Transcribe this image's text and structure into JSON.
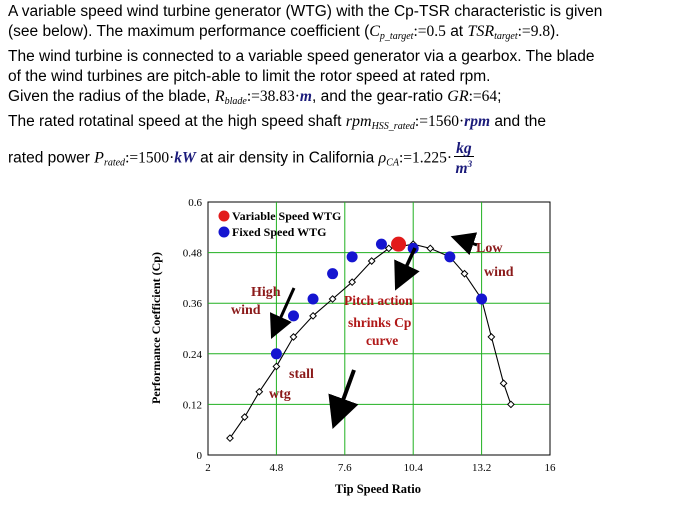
{
  "problem": {
    "line1": "A variable speed wind turbine generator (WTG) with the Cp-TSR characteristic is given",
    "line2_a": "(see below). The maximum performance coefficient (",
    "cp_sym": "C",
    "cp_sub": "p_target",
    "cp_val": "0.5",
    "at": "at",
    "tsr_sym": "TSR",
    "tsr_sub": "target",
    "tsr_val": "9.8",
    "line2_end": ").",
    "line3": "The wind turbine is connected to a variable speed generator via a gearbox. The blade",
    "line4": "of the wind turbines are pitch-able to limit the rotor speed at rated rpm.",
    "line5_a": "Given the radius of the blade,",
    "r_sym": "R",
    "r_sub": "blade",
    "r_val": "38.83",
    "r_unit": "m",
    "line5_b": ", and the gear-ratio",
    "gr_sym": "GR",
    "gr_val": "64",
    "line5_end": ";",
    "line6_a": "The rated rotatinal speed at the high speed shaft",
    "rpm_sym": "rpm",
    "rpm_sub": "HSS_rated",
    "rpm_val": "1560",
    "rpm_unit": "rpm",
    "line6_b": "and the",
    "line7_a": "rated power",
    "p_sym": "P",
    "p_sub": "rated",
    "p_val": "1500",
    "p_unit": "kW",
    "line7_b": "at air density in California",
    "rho_sym": "ρ",
    "rho_sub": "CA",
    "rho_val": "1.225",
    "rho_num": "kg",
    "rho_den": "m",
    "rho_den_exp": "3"
  },
  "chart_data": {
    "type": "line",
    "ylabel": "Performance Coefficient (Cp)",
    "xlabel": "Tip Speed Ratio",
    "xlim": [
      2,
      16
    ],
    "ylim": [
      0,
      0.6
    ],
    "xticks": [
      "2",
      "4.8",
      "7.6",
      "10.4",
      "13.2",
      "16"
    ],
    "yticks": [
      "0",
      "0.12",
      "0.24",
      "0.36",
      "0.48",
      "0.6"
    ],
    "grid": true,
    "legend": {
      "placement": "top-left",
      "entries": [
        {
          "label": "Variable Speed WTG",
          "color": "#e21b1b"
        },
        {
          "label": "Fixed Speed WTG",
          "color": "#1515d0"
        }
      ]
    },
    "series": [
      {
        "name": "Cp curve",
        "color": "#000000",
        "x": [
          2.9,
          3.5,
          4.1,
          4.8,
          5.5,
          6.3,
          7.1,
          7.9,
          8.7,
          9.4,
          10.4,
          11.1,
          11.9,
          12.5,
          13.2,
          13.6,
          14.1,
          14.4
        ],
        "y": [
          0.04,
          0.09,
          0.15,
          0.21,
          0.28,
          0.33,
          0.37,
          0.41,
          0.46,
          0.49,
          0.5,
          0.49,
          0.47,
          0.43,
          0.37,
          0.28,
          0.17,
          0.12
        ]
      },
      {
        "name": "Fixed Speed WTG",
        "color": "#1515d0",
        "x": [
          4.8,
          5.5,
          6.3,
          7.1,
          7.9,
          9.1,
          10.4,
          11.9,
          13.2
        ],
        "y": [
          0.24,
          0.33,
          0.37,
          0.43,
          0.47,
          0.5,
          0.49,
          0.47,
          0.37
        ]
      },
      {
        "name": "Variable Speed WTG",
        "color": "#e21b1b",
        "x": [
          9.8
        ],
        "y": [
          0.5
        ]
      }
    ],
    "annotations": [
      {
        "text_lines": [
          "High",
          "wind"
        ],
        "color": "#8b1a1a"
      },
      {
        "text_lines": [
          "Pitch action",
          "shrinks Cp",
          "curve"
        ],
        "color": "#b01818"
      },
      {
        "text_lines": [
          "Low",
          "wind"
        ],
        "color": "#8b1a1a"
      },
      {
        "text_lines": [
          "stall",
          "wtg"
        ],
        "color": "#8b1a1a"
      }
    ]
  }
}
